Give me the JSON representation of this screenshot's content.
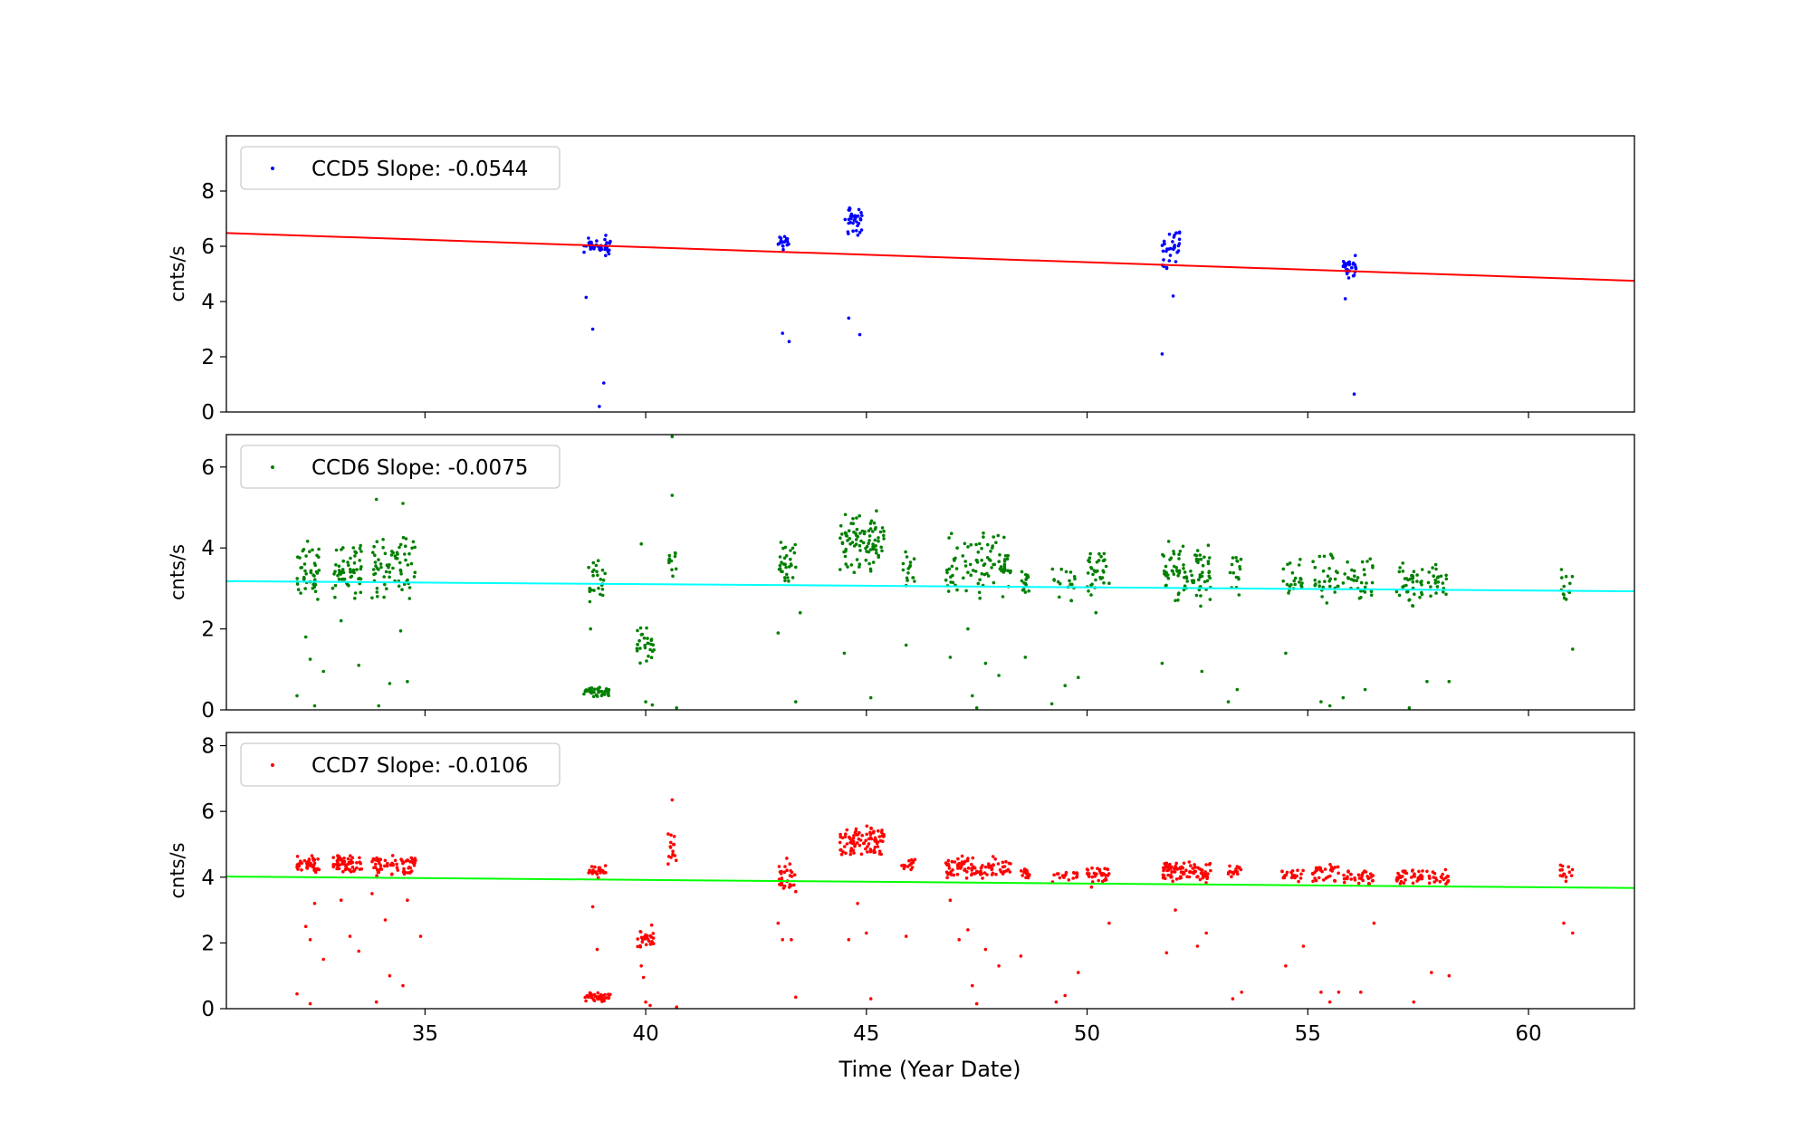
{
  "figure": {
    "xlabel": "Time (Year Date)",
    "x_ticks": [
      35,
      40,
      45,
      50,
      55,
      60
    ],
    "x_ticks_text": [
      "35",
      "40",
      "45",
      "50",
      "55",
      "60"
    ],
    "xlim": [
      30.5,
      62.4
    ]
  },
  "chart_data": [
    {
      "type": "scatter",
      "ylabel": "cnts/s",
      "ylim": [
        0,
        10
      ],
      "y_ticks": [
        0,
        2,
        4,
        6,
        8
      ],
      "y_ticks_text": [
        "0",
        "2",
        "4",
        "6",
        "8"
      ],
      "grid": false,
      "legend_position": "top-left",
      "series": [
        {
          "name": "CCD5 Slope: -0.0544",
          "color": "#0000ff"
        }
      ],
      "fit_line": {
        "color": "#ff0000",
        "x": [
          30.5,
          62.4
        ],
        "y": [
          6.48,
          4.75
        ]
      },
      "clusters": [
        {
          "x": [
            38.6,
            39.2
          ],
          "y": [
            5.5,
            6.5
          ],
          "n": 40
        },
        {
          "x": [
            43.0,
            43.3
          ],
          "y": [
            5.8,
            6.5
          ],
          "n": 18
        },
        {
          "x": [
            44.5,
            44.9
          ],
          "y": [
            6.3,
            7.6
          ],
          "n": 35
        },
        {
          "x": [
            51.7,
            52.1
          ],
          "y": [
            5.0,
            6.9
          ],
          "n": 35
        },
        {
          "x": [
            55.8,
            56.1
          ],
          "y": [
            4.8,
            5.7
          ],
          "n": 28
        }
      ],
      "outliers": [
        [
          38.65,
          4.15
        ],
        [
          38.8,
          3.0
        ],
        [
          39.05,
          1.05
        ],
        [
          38.95,
          0.2
        ],
        [
          43.1,
          2.85
        ],
        [
          43.25,
          2.55
        ],
        [
          44.6,
          3.4
        ],
        [
          44.85,
          2.8
        ],
        [
          51.7,
          2.1
        ],
        [
          51.95,
          4.2
        ],
        [
          55.85,
          4.1
        ],
        [
          56.05,
          0.65
        ]
      ]
    },
    {
      "type": "scatter",
      "ylabel": "cnts/s",
      "ylim": [
        0,
        6.8
      ],
      "y_ticks": [
        0,
        2,
        4,
        6
      ],
      "y_ticks_text": [
        "0",
        "2",
        "4",
        "6"
      ],
      "grid": false,
      "legend_position": "top-left",
      "series": [
        {
          "name": "CCD6 Slope: -0.0075",
          "color": "#008000"
        }
      ],
      "fit_line": {
        "color": "#00ffff",
        "x": [
          30.5,
          62.4
        ],
        "y": [
          3.18,
          2.93
        ]
      },
      "clusters": [
        {
          "x": [
            32.1,
            32.6
          ],
          "y": [
            2.6,
            4.2
          ],
          "n": 45
        },
        {
          "x": [
            32.9,
            33.6
          ],
          "y": [
            2.6,
            4.3
          ],
          "n": 55
        },
        {
          "x": [
            33.8,
            34.8
          ],
          "y": [
            2.7,
            4.4
          ],
          "n": 70
        },
        {
          "x": [
            38.6,
            39.2
          ],
          "y": [
            0.3,
            0.6
          ],
          "n": 40
        },
        {
          "x": [
            38.7,
            39.1
          ],
          "y": [
            2.6,
            3.8
          ],
          "n": 25
        },
        {
          "x": [
            39.8,
            40.2
          ],
          "y": [
            1.1,
            2.2
          ],
          "n": 28
        },
        {
          "x": [
            40.5,
            40.7
          ],
          "y": [
            3.2,
            4.3
          ],
          "n": 12
        },
        {
          "x": [
            43.0,
            43.4
          ],
          "y": [
            2.8,
            4.3
          ],
          "n": 30
        },
        {
          "x": [
            44.4,
            45.4
          ],
          "y": [
            3.3,
            5.0
          ],
          "n": 90
        },
        {
          "x": [
            45.8,
            46.1
          ],
          "y": [
            3.0,
            4.0
          ],
          "n": 16
        },
        {
          "x": [
            46.8,
            48.3
          ],
          "y": [
            2.7,
            4.5
          ],
          "n": 90
        },
        {
          "x": [
            48.5,
            48.7
          ],
          "y": [
            2.8,
            3.7
          ],
          "n": 15
        },
        {
          "x": [
            49.2,
            49.8
          ],
          "y": [
            2.6,
            3.6
          ],
          "n": 18
        },
        {
          "x": [
            50.0,
            50.5
          ],
          "y": [
            2.8,
            4.0
          ],
          "n": 35
        },
        {
          "x": [
            51.7,
            52.8
          ],
          "y": [
            2.5,
            4.2
          ],
          "n": 85
        },
        {
          "x": [
            53.2,
            53.5
          ],
          "y": [
            2.7,
            4.0
          ],
          "n": 16
        },
        {
          "x": [
            54.4,
            54.9
          ],
          "y": [
            2.6,
            3.9
          ],
          "n": 22
        },
        {
          "x": [
            55.1,
            55.7
          ],
          "y": [
            2.5,
            3.9
          ],
          "n": 30
        },
        {
          "x": [
            55.8,
            56.5
          ],
          "y": [
            2.6,
            3.8
          ],
          "n": 34
        },
        {
          "x": [
            57.0,
            57.6
          ],
          "y": [
            2.5,
            3.7
          ],
          "n": 38
        },
        {
          "x": [
            57.7,
            58.2
          ],
          "y": [
            2.5,
            3.8
          ],
          "n": 22
        },
        {
          "x": [
            60.7,
            61.0
          ],
          "y": [
            2.6,
            3.6
          ],
          "n": 14
        }
      ],
      "outliers": [
        [
          32.1,
          0.35
        ],
        [
          32.3,
          1.8
        ],
        [
          32.4,
          1.25
        ],
        [
          32.5,
          0.1
        ],
        [
          32.7,
          0.95
        ],
        [
          33.1,
          2.2
        ],
        [
          33.5,
          1.1
        ],
        [
          33.9,
          5.2
        ],
        [
          34.5,
          5.1
        ],
        [
          33.95,
          0.1
        ],
        [
          34.6,
          0.7
        ],
        [
          34.2,
          0.65
        ],
        [
          34.45,
          1.95
        ],
        [
          38.75,
          2.0
        ],
        [
          39.9,
          4.1
        ],
        [
          40.0,
          0.2
        ],
        [
          40.15,
          0.12
        ],
        [
          40.6,
          6.75
        ],
        [
          40.6,
          5.3
        ],
        [
          40.7,
          0.05
        ],
        [
          43.0,
          1.9
        ],
        [
          43.4,
          0.2
        ],
        [
          43.5,
          2.4
        ],
        [
          44.5,
          1.4
        ],
        [
          45.1,
          0.3
        ],
        [
          45.9,
          1.6
        ],
        [
          46.9,
          1.3
        ],
        [
          47.3,
          2.0
        ],
        [
          47.4,
          0.35
        ],
        [
          47.5,
          0.05
        ],
        [
          47.7,
          1.15
        ],
        [
          48.0,
          0.85
        ],
        [
          48.6,
          1.3
        ],
        [
          49.2,
          0.15
        ],
        [
          49.5,
          0.6
        ],
        [
          49.8,
          0.8
        ],
        [
          50.2,
          2.4
        ],
        [
          51.7,
          1.15
        ],
        [
          52.0,
          2.7
        ],
        [
          52.6,
          0.95
        ],
        [
          53.2,
          0.2
        ],
        [
          53.4,
          0.5
        ],
        [
          54.5,
          1.4
        ],
        [
          55.3,
          0.2
        ],
        [
          55.5,
          0.1
        ],
        [
          55.8,
          0.3
        ],
        [
          56.3,
          0.5
        ],
        [
          57.3,
          0.05
        ],
        [
          57.7,
          0.7
        ],
        [
          58.2,
          0.7
        ],
        [
          61.0,
          1.5
        ]
      ]
    },
    {
      "type": "scatter",
      "ylabel": "cnts/s",
      "ylim": [
        0,
        8.4
      ],
      "y_ticks": [
        0,
        2,
        4,
        6,
        8
      ],
      "y_ticks_text": [
        "0",
        "2",
        "4",
        "6",
        "8"
      ],
      "grid": false,
      "legend_position": "top-left",
      "series": [
        {
          "name": "CCD7 Slope: -0.0106",
          "color": "#ff0000"
        }
      ],
      "fit_line": {
        "color": "#00ff00",
        "x": [
          30.5,
          62.4
        ],
        "y": [
          4.02,
          3.67
        ]
      },
      "clusters": [
        {
          "x": [
            32.1,
            32.6
          ],
          "y": [
            4.1,
            4.7
          ],
          "n": 45
        },
        {
          "x": [
            32.9,
            33.6
          ],
          "y": [
            4.1,
            4.7
          ],
          "n": 55
        },
        {
          "x": [
            33.8,
            34.8
          ],
          "y": [
            4.0,
            4.7
          ],
          "n": 70
        },
        {
          "x": [
            38.6,
            39.2
          ],
          "y": [
            0.2,
            0.5
          ],
          "n": 40
        },
        {
          "x": [
            38.7,
            39.1
          ],
          "y": [
            3.9,
            4.4
          ],
          "n": 25
        },
        {
          "x": [
            39.8,
            40.2
          ],
          "y": [
            1.7,
            2.6
          ],
          "n": 28
        },
        {
          "x": [
            40.5,
            40.7
          ],
          "y": [
            4.2,
            5.6
          ],
          "n": 16
        },
        {
          "x": [
            43.0,
            43.4
          ],
          "y": [
            3.5,
            4.7
          ],
          "n": 30
        },
        {
          "x": [
            44.4,
            45.4
          ],
          "y": [
            4.6,
            5.6
          ],
          "n": 90
        },
        {
          "x": [
            45.8,
            46.1
          ],
          "y": [
            4.1,
            4.6
          ],
          "n": 16
        },
        {
          "x": [
            46.8,
            48.3
          ],
          "y": [
            3.9,
            4.7
          ],
          "n": 90
        },
        {
          "x": [
            48.5,
            48.7
          ],
          "y": [
            3.9,
            4.3
          ],
          "n": 15
        },
        {
          "x": [
            49.2,
            49.8
          ],
          "y": [
            3.8,
            4.3
          ],
          "n": 18
        },
        {
          "x": [
            50.0,
            50.5
          ],
          "y": [
            3.8,
            4.4
          ],
          "n": 35
        },
        {
          "x": [
            51.7,
            52.8
          ],
          "y": [
            3.8,
            4.5
          ],
          "n": 85
        },
        {
          "x": [
            53.2,
            53.5
          ],
          "y": [
            3.9,
            4.5
          ],
          "n": 16
        },
        {
          "x": [
            54.4,
            54.9
          ],
          "y": [
            3.8,
            4.3
          ],
          "n": 22
        },
        {
          "x": [
            55.1,
            55.7
          ],
          "y": [
            3.8,
            4.5
          ],
          "n": 30
        },
        {
          "x": [
            55.8,
            56.5
          ],
          "y": [
            3.7,
            4.3
          ],
          "n": 34
        },
        {
          "x": [
            57.0,
            57.6
          ],
          "y": [
            3.7,
            4.3
          ],
          "n": 38
        },
        {
          "x": [
            57.7,
            58.2
          ],
          "y": [
            3.7,
            4.3
          ],
          "n": 22
        },
        {
          "x": [
            60.7,
            61.0
          ],
          "y": [
            3.8,
            4.4
          ],
          "n": 14
        }
      ],
      "outliers": [
        [
          32.1,
          0.45
        ],
        [
          32.3,
          2.5
        ],
        [
          32.4,
          2.1
        ],
        [
          32.5,
          3.2
        ],
        [
          32.7,
          1.5
        ],
        [
          32.4,
          0.15
        ],
        [
          33.1,
          3.3
        ],
        [
          33.3,
          2.2
        ],
        [
          33.5,
          1.75
        ],
        [
          33.8,
          3.5
        ],
        [
          33.9,
          0.2
        ],
        [
          34.1,
          2.7
        ],
        [
          34.2,
          1.0
        ],
        [
          34.5,
          0.7
        ],
        [
          34.6,
          3.3
        ],
        [
          34.9,
          2.2
        ],
        [
          38.8,
          3.1
        ],
        [
          38.9,
          1.8
        ],
        [
          39.95,
          0.95
        ],
        [
          39.9,
          1.3
        ],
        [
          40.0,
          0.2
        ],
        [
          40.1,
          0.1
        ],
        [
          40.6,
          6.35
        ],
        [
          40.7,
          0.05
        ],
        [
          43.0,
          2.6
        ],
        [
          43.1,
          2.1
        ],
        [
          43.3,
          2.1
        ],
        [
          43.4,
          0.35
        ],
        [
          44.6,
          2.1
        ],
        [
          44.8,
          3.2
        ],
        [
          45.1,
          0.3
        ],
        [
          45.0,
          2.3
        ],
        [
          45.9,
          2.2
        ],
        [
          46.9,
          3.3
        ],
        [
          47.1,
          2.1
        ],
        [
          47.3,
          2.4
        ],
        [
          47.4,
          0.7
        ],
        [
          47.5,
          0.15
        ],
        [
          47.7,
          1.8
        ],
        [
          48.0,
          1.3
        ],
        [
          48.5,
          1.6
        ],
        [
          49.3,
          0.2
        ],
        [
          49.5,
          0.4
        ],
        [
          49.8,
          1.1
        ],
        [
          50.1,
          3.7
        ],
        [
          50.5,
          2.6
        ],
        [
          51.8,
          1.7
        ],
        [
          52.0,
          3.0
        ],
        [
          52.5,
          1.9
        ],
        [
          52.7,
          2.3
        ],
        [
          53.3,
          0.3
        ],
        [
          53.5,
          0.5
        ],
        [
          54.5,
          1.3
        ],
        [
          54.9,
          1.9
        ],
        [
          55.3,
          0.5
        ],
        [
          55.5,
          0.2
        ],
        [
          55.7,
          0.5
        ],
        [
          56.2,
          0.5
        ],
        [
          56.5,
          2.6
        ],
        [
          57.4,
          0.2
        ],
        [
          57.8,
          1.1
        ],
        [
          58.2,
          1.0
        ],
        [
          60.8,
          2.6
        ],
        [
          61.0,
          2.3
        ]
      ]
    }
  ]
}
